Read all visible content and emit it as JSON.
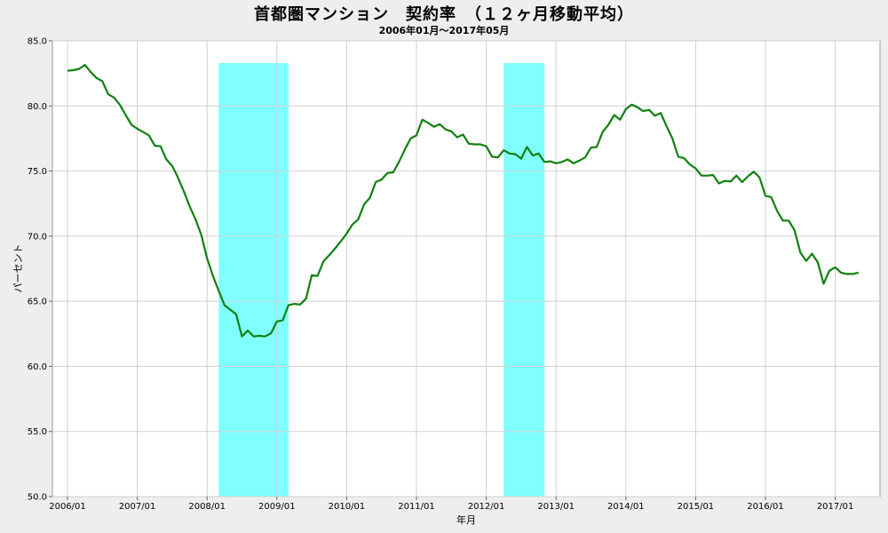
{
  "chart_data": {
    "type": "line",
    "title": "首都圏マンション　契約率　（１２ヶ月移動平均）",
    "subtitle": "2006年01月～2017年05月",
    "xlabel": "年月",
    "ylabel": "パーセント",
    "ylim": [
      50.0,
      85.0
    ],
    "yticks": [
      "50.0",
      "55.0",
      "60.0",
      "65.0",
      "70.0",
      "75.0",
      "80.0",
      "85.0"
    ],
    "xticks": [
      "2006/01",
      "2007/01",
      "2008/01",
      "2009/01",
      "2010/01",
      "2011/01",
      "2012/01",
      "2013/01",
      "2014/01",
      "2015/01",
      "2016/01",
      "2017/01"
    ],
    "grid": true,
    "line_color": "#108010",
    "band_color": "#80ffff",
    "shaded_periods": [
      {
        "start": "2008/03",
        "end": "2009/03"
      },
      {
        "start": "2012/04",
        "end": "2012/11"
      }
    ],
    "x": [
      "2006/01",
      "2006/02",
      "2006/03",
      "2006/04",
      "2006/05",
      "2006/06",
      "2006/07",
      "2006/08",
      "2006/09",
      "2006/10",
      "2006/11",
      "2006/12",
      "2007/01",
      "2007/02",
      "2007/03",
      "2007/04",
      "2007/05",
      "2007/06",
      "2007/07",
      "2007/08",
      "2007/09",
      "2007/10",
      "2007/11",
      "2007/12",
      "2008/01",
      "2008/02",
      "2008/03",
      "2008/04",
      "2008/05",
      "2008/06",
      "2008/07",
      "2008/08",
      "2008/09",
      "2008/10",
      "2008/11",
      "2008/12",
      "2009/01",
      "2009/02",
      "2009/03",
      "2009/04",
      "2009/05",
      "2009/06",
      "2009/07",
      "2009/08",
      "2009/09",
      "2009/10",
      "2009/11",
      "2009/12",
      "2010/01",
      "2010/02",
      "2010/03",
      "2010/04",
      "2010/05",
      "2010/06",
      "2010/07",
      "2010/08",
      "2010/09",
      "2010/10",
      "2010/11",
      "2010/12",
      "2011/01",
      "2011/02",
      "2011/03",
      "2011/04",
      "2011/05",
      "2011/06",
      "2011/07",
      "2011/08",
      "2011/09",
      "2011/10",
      "2011/11",
      "2011/12",
      "2012/01",
      "2012/02",
      "2012/03",
      "2012/04",
      "2012/05",
      "2012/06",
      "2012/07",
      "2012/08",
      "2012/09",
      "2012/10",
      "2012/11",
      "2012/12",
      "2013/01",
      "2013/02",
      "2013/03",
      "2013/04",
      "2013/05",
      "2013/06",
      "2013/07",
      "2013/08",
      "2013/09",
      "2013/10",
      "2013/11",
      "2013/12",
      "2014/01",
      "2014/02",
      "2014/03",
      "2014/04",
      "2014/05",
      "2014/06",
      "2014/07",
      "2014/08",
      "2014/09",
      "2014/10",
      "2014/11",
      "2014/12",
      "2015/01",
      "2015/02",
      "2015/03",
      "2015/04",
      "2015/05",
      "2015/06",
      "2015/07",
      "2015/08",
      "2015/09",
      "2015/10",
      "2015/11",
      "2015/12",
      "2016/01",
      "2016/02",
      "2016/03",
      "2016/04",
      "2016/05",
      "2016/06",
      "2016/07",
      "2016/08",
      "2016/09",
      "2016/10",
      "2016/11",
      "2016/12",
      "2017/01",
      "2017/02",
      "2017/03",
      "2017/04",
      "2017/05"
    ],
    "values": [
      82.7,
      82.75,
      82.85,
      83.15,
      82.6,
      82.15,
      81.9,
      80.9,
      80.65,
      80.1,
      79.3,
      78.55,
      78.25,
      78.0,
      77.75,
      76.95,
      76.9,
      75.9,
      75.4,
      74.5,
      73.45,
      72.3,
      71.3,
      70.1,
      68.3,
      66.95,
      65.8,
      64.7,
      64.35,
      64.0,
      62.3,
      62.75,
      62.3,
      62.35,
      62.3,
      62.55,
      63.45,
      63.55,
      64.7,
      64.8,
      64.75,
      65.2,
      67.0,
      66.95,
      68.05,
      68.55,
      69.05,
      69.6,
      70.2,
      70.9,
      71.3,
      72.45,
      72.95,
      74.15,
      74.35,
      74.85,
      74.9,
      75.7,
      76.65,
      77.5,
      77.75,
      78.95,
      78.7,
      78.4,
      78.6,
      78.2,
      78.05,
      77.6,
      77.8,
      77.1,
      77.05,
      77.05,
      76.9,
      76.1,
      76.05,
      76.6,
      76.35,
      76.3,
      75.95,
      76.85,
      76.2,
      76.35,
      75.7,
      75.75,
      75.6,
      75.7,
      75.9,
      75.6,
      75.8,
      76.05,
      76.8,
      76.85,
      78.0,
      78.55,
      79.3,
      78.95,
      79.75,
      80.1,
      79.9,
      79.6,
      79.7,
      79.25,
      79.45,
      78.45,
      77.5,
      76.1,
      76.0,
      75.5,
      75.2,
      74.65,
      74.65,
      74.7,
      74.05,
      74.25,
      74.2,
      74.65,
      74.15,
      74.6,
      74.95,
      74.5,
      73.1,
      73.0,
      71.95,
      71.2,
      71.2,
      70.45,
      68.75,
      68.1,
      68.65,
      68.0,
      66.35,
      67.35,
      67.6,
      67.2,
      67.1,
      67.1,
      67.2
    ]
  }
}
